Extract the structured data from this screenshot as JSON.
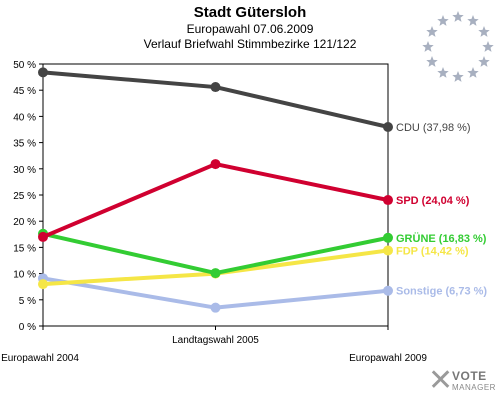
{
  "header": {
    "title": "Stadt Gütersloh",
    "subtitle1": "Europawahl 07.06.2009",
    "subtitle2": "Verlauf Briefwahl Stimmbezirke 121/122"
  },
  "emblem": {
    "icon": "eu-stars-icon",
    "color": "#a8b0c0"
  },
  "logo": {
    "icon": "vote-manager-logo",
    "word1": "VOTE",
    "word2": "MANAGER"
  },
  "chart_data": {
    "type": "line",
    "x": [
      "Europawahl 2004",
      "Landtagswahl 2005",
      "Europawahl 2009"
    ],
    "ylim": [
      0,
      50
    ],
    "yticks": [
      0,
      5,
      10,
      15,
      20,
      25,
      30,
      35,
      40,
      45,
      50
    ],
    "ytick_labels": [
      "0 %",
      "5 %",
      "10 %",
      "15 %",
      "20 %",
      "25 %",
      "30 %",
      "35 %",
      "40 %",
      "45 %",
      "50 %"
    ],
    "grid": false,
    "series": [
      {
        "name": "Sonstige",
        "label": "Sonstige (6,73 %)",
        "color": "#aabbe8",
        "values": [
          9.1,
          3.5,
          6.73
        ]
      },
      {
        "name": "FDP",
        "label": "FDP (14,42 %)",
        "color": "#f5e646",
        "values": [
          8.0,
          10.0,
          14.42
        ]
      },
      {
        "name": "GRÜNE",
        "label": "GRÜNE (16,83 %)",
        "color": "#33cc33",
        "values": [
          17.6,
          10.1,
          16.83
        ]
      },
      {
        "name": "SPD",
        "label": "SPD (24,04 %)",
        "color": "#d00030",
        "values": [
          17.0,
          30.9,
          24.04
        ]
      },
      {
        "name": "CDU",
        "label": "CDU (37,98 %)",
        "color": "#444444",
        "values": [
          48.4,
          45.6,
          37.98
        ]
      }
    ]
  }
}
